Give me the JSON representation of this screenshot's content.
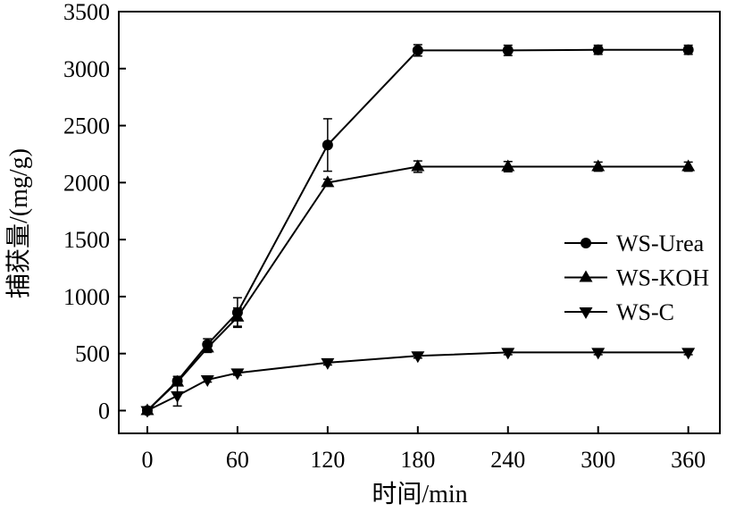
{
  "chart_data": {
    "type": "line",
    "title": "",
    "xlabel": "时间/min",
    "ylabel": "捕获量/(mg/g)",
    "xlim": [
      -19,
      381
    ],
    "ylim": [
      -200,
      3500
    ],
    "xticks": [
      0,
      60,
      120,
      180,
      240,
      300,
      360
    ],
    "yticks": [
      0,
      500,
      1000,
      1500,
      2000,
      2500,
      3000,
      3500
    ],
    "grid": false,
    "legend_position": "right-middle",
    "x": [
      0,
      20,
      40,
      60,
      120,
      180,
      240,
      300,
      360
    ],
    "series": [
      {
        "name": "WS-Urea",
        "marker": "circle",
        "values": [
          0,
          260,
          580,
          860,
          2330,
          3160,
          3160,
          3165,
          3165
        ],
        "errors": [
          20,
          40,
          50,
          130,
          230,
          50,
          45,
          40,
          40
        ]
      },
      {
        "name": "WS-KOH",
        "marker": "triangle-up",
        "values": [
          0,
          250,
          550,
          820,
          2000,
          2140,
          2140,
          2140,
          2140
        ],
        "errors": [
          20,
          30,
          40,
          80,
          30,
          50,
          45,
          40,
          40
        ]
      },
      {
        "name": "WS-C",
        "marker": "triangle-down",
        "values": [
          0,
          130,
          270,
          330,
          420,
          480,
          510,
          510,
          510
        ],
        "errors": [
          20,
          90,
          20,
          20,
          20,
          20,
          20,
          20,
          20
        ]
      }
    ]
  }
}
